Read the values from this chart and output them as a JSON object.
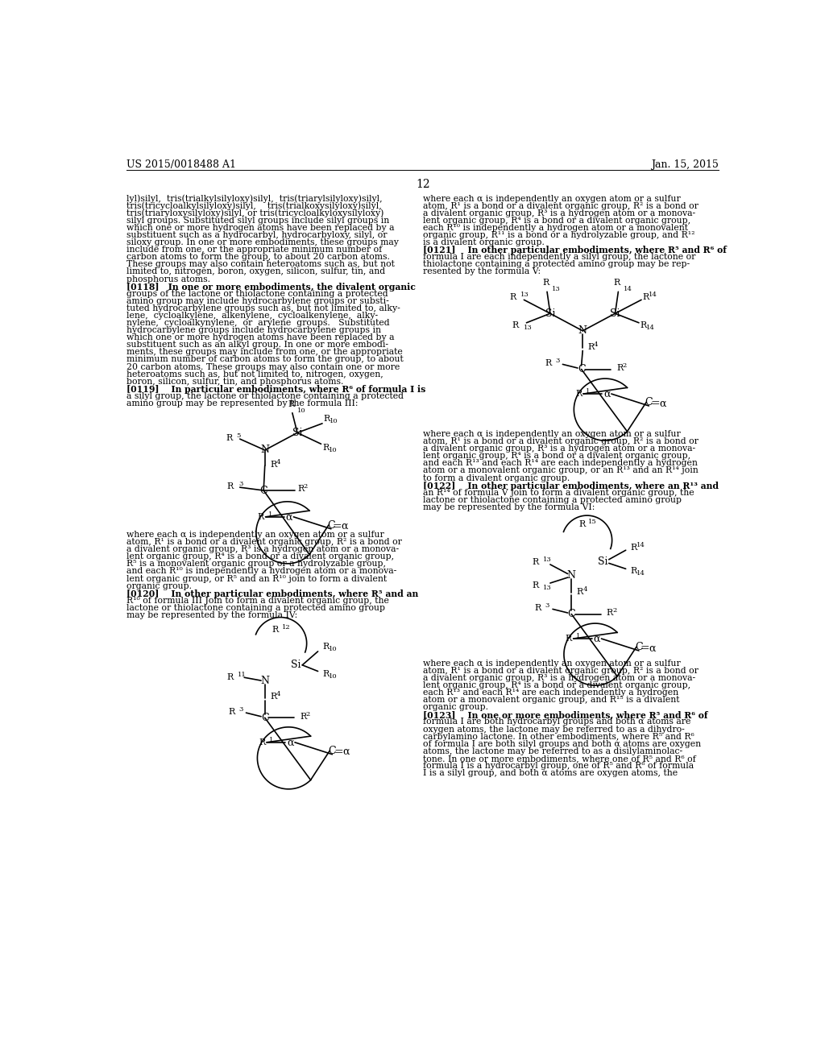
{
  "background_color": "#ffffff",
  "header_left": "US 2015/0018488 A1",
  "header_right": "Jan. 15, 2015",
  "page_number": "12",
  "text_color": "#000000"
}
